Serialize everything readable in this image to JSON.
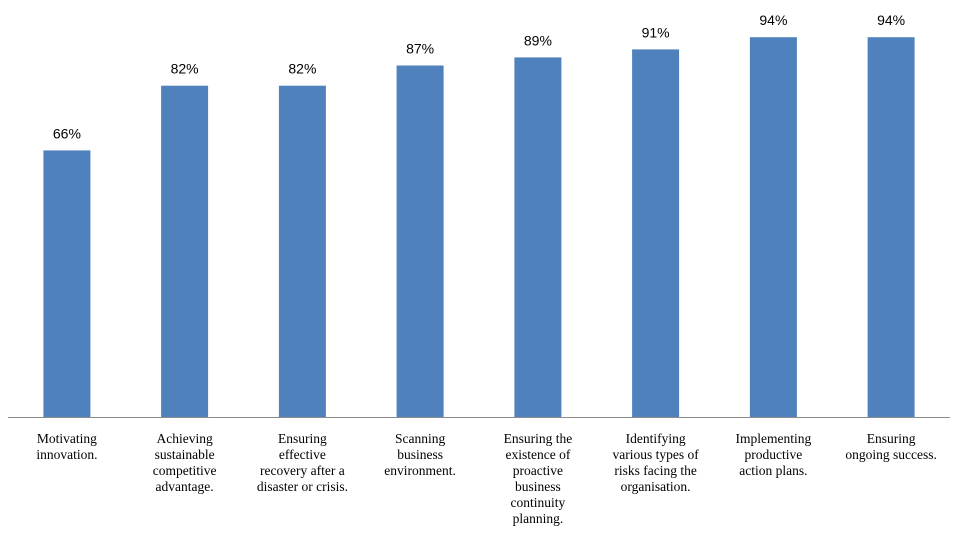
{
  "chart_data": {
    "type": "bar",
    "title": "",
    "xlabel": "",
    "ylabel": "",
    "ylim": [
      0,
      100
    ],
    "grid": false,
    "legend": "none",
    "bar_color": "#4f81bd",
    "value_suffix": "%",
    "categories": [
      [
        "Motivating",
        "innovation."
      ],
      [
        "Achieving",
        "sustainable",
        "competitive",
        "advantage."
      ],
      [
        "Ensuring",
        "effective",
        "recovery after a",
        "disaster or crisis."
      ],
      [
        "Scanning",
        "business",
        "environment."
      ],
      [
        "Ensuring the",
        "existence of",
        "proactive",
        "business",
        "continuity",
        "planning."
      ],
      [
        "Identifying",
        "various types of",
        "risks facing the",
        "organisation."
      ],
      [
        "Implementing",
        "productive",
        "action plans."
      ],
      [
        "Ensuring",
        "ongoing success."
      ]
    ],
    "values": [
      66,
      82,
      82,
      87,
      89,
      91,
      94,
      94
    ],
    "data_labels": [
      "66%",
      "82%",
      "82%",
      "87%",
      "89%",
      "91%",
      "94%",
      "94%"
    ]
  }
}
